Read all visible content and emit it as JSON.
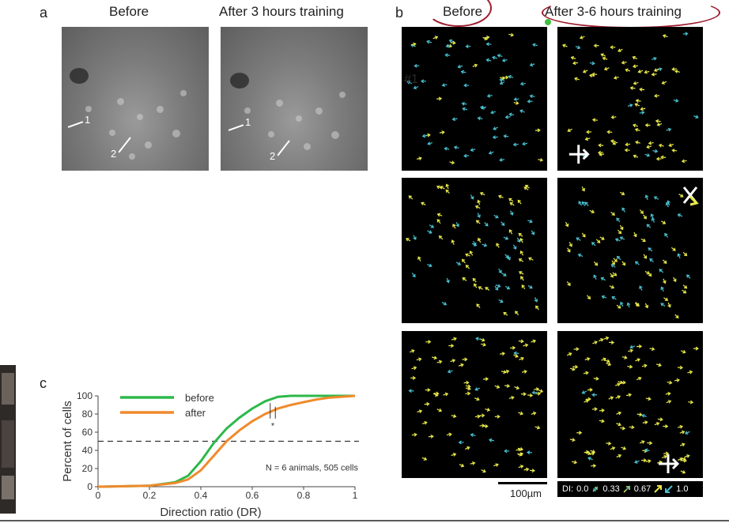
{
  "panel_a": {
    "letter": "a",
    "titles": [
      "Before",
      "After 3 hours training"
    ],
    "cell_labels": [
      "1",
      "2"
    ]
  },
  "panel_b": {
    "letter": "b",
    "titles": [
      "Before",
      "After 3-6 hours training"
    ],
    "field_number": "#1",
    "scale_label": "100µm",
    "di_legend": {
      "prefix": "DI:",
      "values": [
        "0.0",
        "0.33",
        "0.67",
        "1.0"
      ]
    },
    "colors": {
      "yellow": "#e8e84a",
      "cyan": "#48c0d0"
    }
  },
  "panel_c": {
    "letter": "c"
  },
  "chart_data": {
    "type": "line",
    "title": "",
    "xlabel": "Direction ratio (DR)",
    "ylabel": "Percent of cells",
    "xlim": [
      0,
      1
    ],
    "ylim": [
      0,
      100
    ],
    "xticks": [
      "0",
      "0.2",
      "0.4",
      "0.6",
      "0.8",
      "1"
    ],
    "yticks": [
      "0",
      "20",
      "40",
      "60",
      "80",
      "100"
    ],
    "annotation": "N = 6 animals, 505 cells",
    "significance": "*",
    "reference_line_y": 50,
    "legend_position": "top-left",
    "series": [
      {
        "name": "before",
        "color": "#2db84a",
        "x": [
          0,
          0.2,
          0.3,
          0.35,
          0.4,
          0.45,
          0.5,
          0.55,
          0.6,
          0.65,
          0.7,
          0.75,
          0.8,
          1.0
        ],
        "y": [
          0,
          1,
          5,
          12,
          28,
          48,
          64,
          76,
          86,
          94,
          99,
          100,
          100,
          100
        ]
      },
      {
        "name": "after",
        "color": "#f08a2c",
        "x": [
          0,
          0.2,
          0.3,
          0.35,
          0.4,
          0.45,
          0.5,
          0.55,
          0.6,
          0.65,
          0.7,
          0.75,
          0.8,
          0.85,
          0.9,
          1.0
        ],
        "y": [
          0,
          1,
          4,
          8,
          18,
          34,
          50,
          62,
          72,
          80,
          86,
          90,
          93,
          96,
          98,
          100
        ]
      }
    ]
  }
}
